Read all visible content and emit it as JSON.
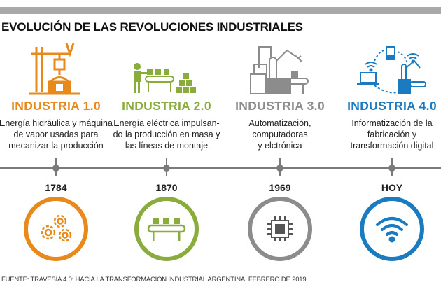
{
  "title": "EVOLUCIÓN DE LAS REVOLUCIONES INDUSTRIALES",
  "colors": {
    "i1": "#e8891c",
    "i2": "#8aac3c",
    "i3": "#8c8c8c",
    "i4": "#1a7bc0",
    "line": "#7a7a7a"
  },
  "stages": [
    {
      "label": "INDUSTRIA 1.0",
      "desc": [
        "Energía hidráulica y máquina",
        "de vapor usadas para",
        "mecanizar la producción"
      ],
      "year": "1784",
      "icon": "steam-engine-icon",
      "badge_icon": "gears-icon"
    },
    {
      "label": "INDUSTRIA 2.0",
      "desc": [
        "Energía eléctrica impulsan-",
        "do la producción en masa y",
        "las líneas de montaje"
      ],
      "year": "1870",
      "icon": "assembly-worker-icon",
      "badge_icon": "conveyor-icon"
    },
    {
      "label": "INDUSTRIA 3.0",
      "desc": [
        "Automatización,",
        "computadoras",
        "y elctrónica"
      ],
      "year": "1969",
      "icon": "robot-arm-icon",
      "badge_icon": "chip-icon"
    },
    {
      "label": "INDUSTRIA 4.0",
      "desc": [
        "Informatización de la",
        "fabricación y",
        "transformación digital"
      ],
      "year": "HOY",
      "icon": "connected-factory-icon",
      "badge_icon": "wifi-icon"
    }
  ],
  "footer": "FUENTE: TRAVESÍA 4.0: HACIA LA TRANSFORMACIÓN INDUSTRIAL ARGENTINA, FEBRERO DE 2019"
}
